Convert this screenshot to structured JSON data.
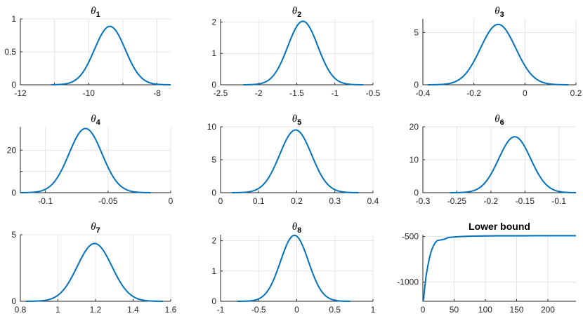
{
  "chart_data": [
    {
      "type": "line",
      "title_symbol": "θ",
      "title_sub": "1",
      "xlim": [
        -12,
        -7.6
      ],
      "ylim": [
        0,
        1
      ],
      "xticks": [
        -12,
        -10,
        -8
      ],
      "xtick_labels": [
        "-12",
        "-10",
        "-8"
      ],
      "yticks": [
        0,
        0.5,
        1
      ],
      "ytick_labels": [
        "0",
        "0.5",
        "1"
      ],
      "x_half_ticks": true,
      "series": [
        {
          "mean": -9.38,
          "sd": 0.45,
          "x_min": -11.1,
          "x_max": -7.6
        }
      ]
    },
    {
      "type": "line",
      "title_symbol": "θ",
      "title_sub": "2",
      "xlim": [
        -2.5,
        -0.5
      ],
      "ylim": [
        0,
        2.1
      ],
      "xticks": [
        -2.5,
        -2,
        -1.5,
        -1,
        -0.5
      ],
      "xtick_labels": [
        "-2.5",
        "-2",
        "-1.5",
        "-1",
        "-0.5"
      ],
      "yticks": [
        0,
        1,
        2
      ],
      "ytick_labels": [
        "0",
        "1",
        "2"
      ],
      "series": [
        {
          "mean": -1.42,
          "sd": 0.197,
          "x_min": -2.2,
          "x_max": -0.63
        }
      ]
    },
    {
      "type": "line",
      "title_symbol": "θ",
      "title_sub": "3",
      "xlim": [
        -0.4,
        0.2
      ],
      "ylim": [
        0,
        6.3
      ],
      "xticks": [
        -0.4,
        -0.2,
        0,
        0.2
      ],
      "xtick_labels": [
        "-0.4",
        "-0.2",
        "0",
        "0.2"
      ],
      "yticks": [
        0,
        5
      ],
      "ytick_labels": [
        "0",
        "5"
      ],
      "series": [
        {
          "mean": -0.105,
          "sd": 0.069,
          "x_min": -0.38,
          "x_max": 0.17
        }
      ]
    },
    {
      "type": "line",
      "title_symbol": "θ",
      "title_sub": "4",
      "xlim": [
        -0.12,
        0
      ],
      "ylim": [
        0,
        31
      ],
      "xticks": [
        -0.1,
        -0.05,
        0
      ],
      "xtick_labels": [
        "-0.1",
        "-0.05",
        "0"
      ],
      "yticks": [
        0,
        10,
        20
      ],
      "ytick_labels": [
        "0",
        "",
        "20"
      ],
      "series": [
        {
          "mean": -0.068,
          "sd": 0.0132,
          "x_min": -0.12,
          "x_max": -0.016
        }
      ]
    },
    {
      "type": "line",
      "title_symbol": "θ",
      "title_sub": "5",
      "xlim": [
        0,
        0.4
      ],
      "ylim": [
        0,
        10
      ],
      "xticks": [
        0,
        0.1,
        0.2,
        0.3,
        0.4
      ],
      "xtick_labels": [
        "0",
        "0.1",
        "0.2",
        "0.3",
        "0.4"
      ],
      "yticks": [
        0,
        5,
        10
      ],
      "ytick_labels": [
        "0",
        "5",
        "10"
      ],
      "series": [
        {
          "mean": 0.197,
          "sd": 0.0419,
          "x_min": 0.03,
          "x_max": 0.362
        }
      ]
    },
    {
      "type": "line",
      "title_symbol": "θ",
      "title_sub": "6",
      "xlim": [
        -0.3,
        -0.075
      ],
      "ylim": [
        0,
        20
      ],
      "xticks": [
        -0.3,
        -0.25,
        -0.2,
        -0.15,
        -0.1
      ],
      "xtick_labels": [
        "-0.3",
        "-0.25",
        "-0.2",
        "-0.15",
        "-0.1"
      ],
      "yticks": [
        0,
        10,
        20
      ],
      "ytick_labels": [
        "0",
        "10",
        "20"
      ],
      "series": [
        {
          "mean": -0.165,
          "sd": 0.0235,
          "x_min": -0.26,
          "x_max": -0.075
        }
      ]
    },
    {
      "type": "line",
      "title_symbol": "θ",
      "title_sub": "7",
      "xlim": [
        0.8,
        1.6
      ],
      "ylim": [
        0,
        5
      ],
      "xticks": [
        0.8,
        1,
        1.2,
        1.4,
        1.6
      ],
      "xtick_labels": [
        "0.8",
        "1",
        "1.2",
        "1.4",
        "1.6"
      ],
      "yticks": [
        0,
        5
      ],
      "ytick_labels": [
        "0",
        "5"
      ],
      "series": [
        {
          "mean": 1.195,
          "sd": 0.0919,
          "x_min": 0.83,
          "x_max": 1.56
        }
      ]
    },
    {
      "type": "line",
      "title_symbol": "θ",
      "title_sub": "8",
      "xlim": [
        -1,
        1
      ],
      "ylim": [
        0,
        2.2
      ],
      "xticks": [
        -1,
        -0.5,
        0,
        0.5,
        1
      ],
      "xtick_labels": [
        "-1",
        "-0.5",
        "0",
        "0.5",
        "1"
      ],
      "yticks": [
        0,
        1,
        2
      ],
      "ytick_labels": [
        "0",
        "1",
        "2"
      ],
      "series": [
        {
          "mean": -0.03,
          "sd": 0.183,
          "x_min": -0.78,
          "x_max": 0.7
        }
      ]
    },
    {
      "type": "line",
      "title": "Lower bound",
      "xlim": [
        0,
        245
      ],
      "ylim": [
        -1210,
        -480
      ],
      "xticks": [
        0,
        50,
        100,
        150,
        200
      ],
      "xtick_labels": [
        "0",
        "50",
        "100",
        "150",
        "200"
      ],
      "yticks": [
        -1000,
        -500
      ],
      "ytick_labels": [
        "-1000",
        "-500"
      ],
      "series": [
        {
          "x": [
            1,
            3,
            5,
            8,
            11,
            14,
            17,
            20,
            23,
            26,
            30,
            35,
            40,
            50,
            60,
            70,
            80,
            100,
            120,
            150,
            180,
            210,
            245
          ],
          "y": [
            -1200,
            -1060,
            -940,
            -820,
            -720,
            -650,
            -600,
            -565,
            -545,
            -540,
            -536,
            -528,
            -512,
            -505,
            -500,
            -497,
            -495,
            -493,
            -492,
            -492,
            -491,
            -491,
            -491
          ]
        }
      ]
    }
  ]
}
